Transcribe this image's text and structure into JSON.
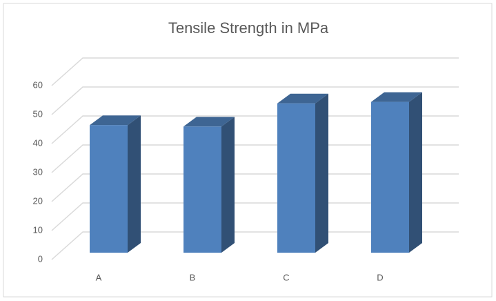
{
  "chart_data": {
    "type": "bar3d",
    "title": "Tensile Strength in MPa",
    "categories": [
      "A",
      "B",
      "C",
      "D"
    ],
    "values": [
      44,
      43.5,
      51.5,
      52
    ],
    "color": "#4f81bd",
    "ylim": [
      0,
      60
    ],
    "yticks": [
      0,
      10,
      20,
      30,
      40,
      50,
      60
    ],
    "grid": true
  }
}
